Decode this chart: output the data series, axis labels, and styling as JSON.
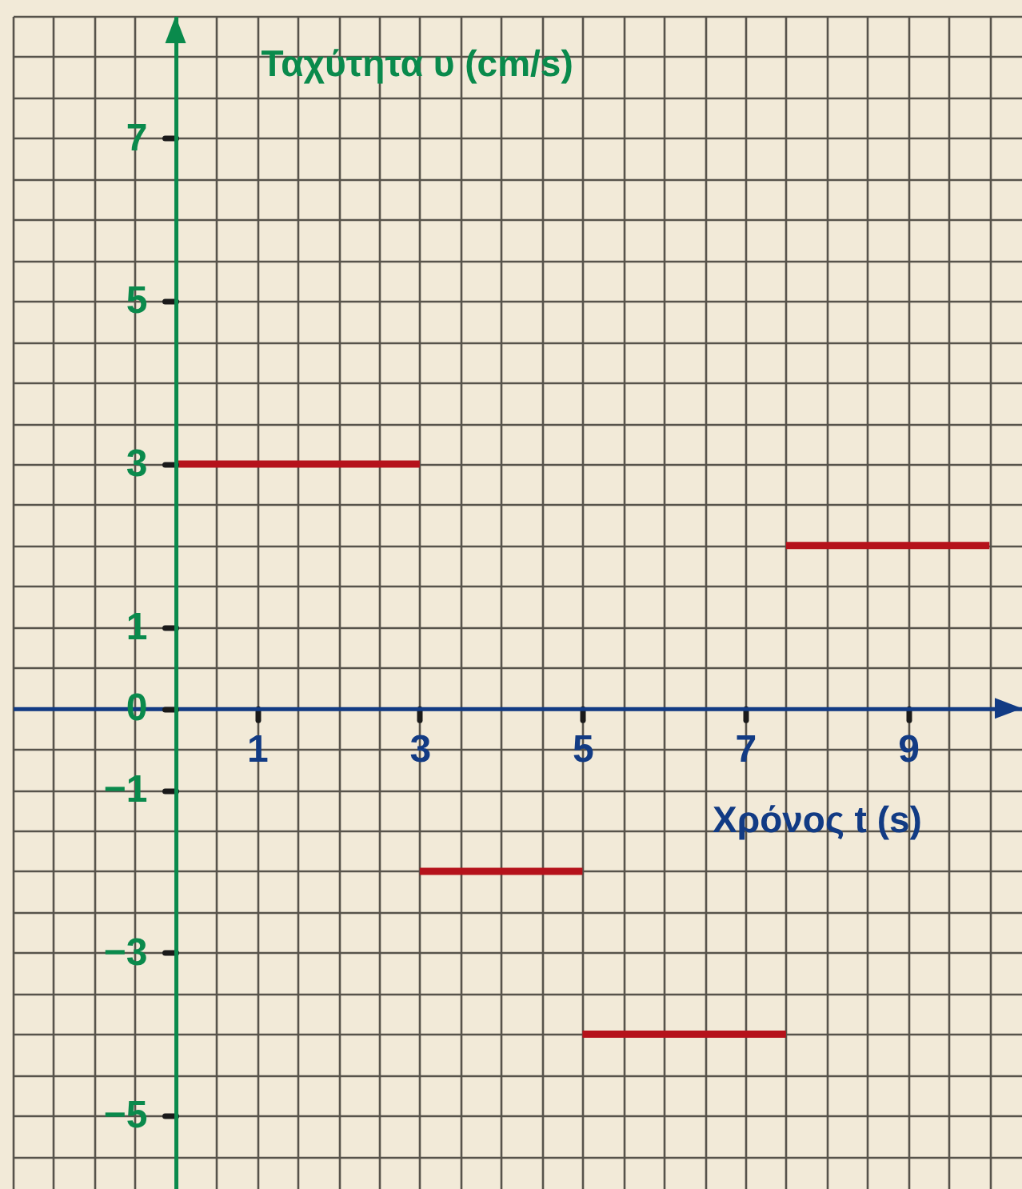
{
  "chart_data": {
    "type": "line",
    "xlabel": "Χρόνος t (s)",
    "ylabel": "Ταχύτητα υ (cm/s)",
    "xlim": [
      -2,
      10.4
    ],
    "ylim": [
      -5.9,
      8.5
    ],
    "xticks": [
      1,
      3,
      5,
      7,
      9
    ],
    "yticks": [
      -5,
      -3,
      -1,
      0,
      1,
      3,
      5,
      7
    ],
    "grid": true,
    "series": [
      {
        "color": "#b5121b",
        "x": [
          0,
          3
        ],
        "values": [
          3,
          3
        ]
      },
      {
        "color": "#b5121b",
        "x": [
          3,
          5
        ],
        "values": [
          -2,
          -2
        ]
      },
      {
        "color": "#b5121b",
        "x": [
          5,
          7.5
        ],
        "values": [
          -4,
          -4
        ]
      },
      {
        "color": "#b5121b",
        "x": [
          7.5,
          10
        ],
        "values": [
          2,
          2
        ]
      }
    ]
  }
}
